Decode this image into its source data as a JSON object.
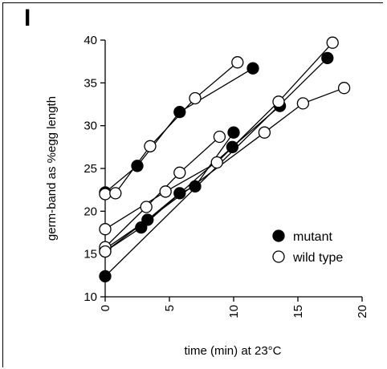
{
  "panel_label": "I",
  "chart_data": {
    "type": "line",
    "xlabel": "time (min) at 23°C",
    "ylabel": "germ-band as %egg length",
    "xlim": [
      0,
      20
    ],
    "ylim": [
      10,
      40
    ],
    "xticks": [
      0,
      5,
      10,
      15,
      20
    ],
    "yticks": [
      10,
      15,
      20,
      25,
      30,
      35,
      40
    ],
    "grid": false,
    "legend_placement": "bottom-right",
    "legend": [
      {
        "label": "mutant",
        "marker": "filled-circle"
      },
      {
        "label": "wild type",
        "marker": "open-circle"
      }
    ],
    "series": [
      {
        "group": "mutant",
        "points": [
          [
            0,
            22.2
          ],
          [
            2.5,
            25.3
          ],
          [
            5.8,
            31.6
          ],
          [
            11.5,
            36.7
          ]
        ]
      },
      {
        "group": "mutant",
        "points": [
          [
            0,
            15.6
          ],
          [
            3.3,
            19.0
          ],
          [
            5.8,
            22.1
          ],
          [
            7.0,
            22.9
          ],
          [
            10.0,
            29.2
          ]
        ]
      },
      {
        "group": "mutant",
        "points": [
          [
            0,
            15.3
          ],
          [
            2.8,
            18.1
          ],
          [
            9.9,
            27.5
          ],
          [
            13.6,
            32.3
          ]
        ]
      },
      {
        "group": "mutant",
        "points": [
          [
            0,
            12.4
          ],
          [
            17.3,
            37.9
          ]
        ]
      },
      {
        "group": "wild type",
        "points": [
          [
            0,
            22.0
          ],
          [
            0.8,
            22.1
          ],
          [
            3.5,
            27.6
          ],
          [
            7.0,
            33.2
          ],
          [
            10.3,
            37.4
          ]
        ]
      },
      {
        "group": "wild type",
        "points": [
          [
            0,
            15.8
          ],
          [
            3.2,
            20.5
          ],
          [
            5.8,
            24.5
          ],
          [
            8.9,
            28.7
          ]
        ]
      },
      {
        "group": "wild type",
        "points": [
          [
            0,
            17.9
          ],
          [
            4.7,
            22.3
          ],
          [
            8.7,
            25.7
          ],
          [
            13.5,
            32.8
          ],
          [
            17.7,
            39.7
          ]
        ]
      },
      {
        "group": "wild type",
        "points": [
          [
            0,
            15.3
          ],
          [
            12.4,
            29.2
          ],
          [
            15.4,
            32.6
          ],
          [
            18.6,
            34.4
          ]
        ]
      }
    ]
  }
}
